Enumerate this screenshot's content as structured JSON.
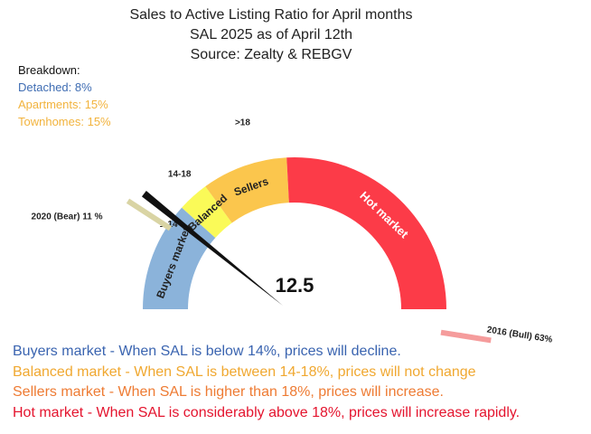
{
  "title": {
    "line1": "Sales to Active Listing Ratio for April months",
    "line2": "SAL 2025 as of April 12th",
    "line3": "Source: Zealty & REBGV"
  },
  "breakdown": {
    "heading": "Breakdown:",
    "items": [
      {
        "text": "Detached: 8%",
        "color": "#3f6db3"
      },
      {
        "text": "Apartments: 15%",
        "color": "#f2b33d"
      },
      {
        "text": "Townhomes: 15%",
        "color": "#f2b33d"
      }
    ]
  },
  "chart_data": {
    "type": "gauge",
    "range": [
      0,
      60
    ],
    "value": 12.5,
    "value_label": "12.5",
    "zones": [
      {
        "name": "Buyers market",
        "from": 0,
        "to": 14,
        "color": "#8bb3da"
      },
      {
        "name": "Balanced",
        "from": 14,
        "to": 18,
        "color": "#fafa58"
      },
      {
        "name": "Sellers",
        "from": 18,
        "to": 29,
        "color": "#fbc64d"
      },
      {
        "name": "Hot market",
        "from": 29,
        "to": 60,
        "color": "#fc3b48"
      }
    ],
    "tick_labels": [
      "1-14",
      "14-18",
      ">18"
    ],
    "markers": [
      {
        "label": "2020 (Bear) 11 %",
        "value": 11,
        "color": "#d9d4a4"
      },
      {
        "label": "2016 (Bull) 63%",
        "value": 63,
        "color": "#f59c9c"
      }
    ],
    "needle_color": "#111111"
  },
  "legend": [
    {
      "text": "Buyers market - When SAL is below 14%, prices will decline.",
      "color": "#3a64b0"
    },
    {
      "text": "Balanced market - When SAL is between 14-18%, prices will not change",
      "color": "#f0a830"
    },
    {
      "text": "Sellers market  - When SAL is higher than 18%, prices will increase.",
      "color": "#ee7b33"
    },
    {
      "text": "Hot market - When SAL is considerably above 18%, prices will increase rapidly.",
      "color": "#e4142e"
    }
  ]
}
